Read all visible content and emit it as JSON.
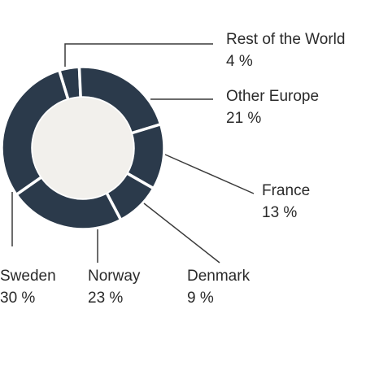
{
  "chart_data": {
    "type": "pie",
    "variant": "donut",
    "slices": [
      {
        "label": "Rest of the World",
        "value": 4,
        "value_label": "4 %"
      },
      {
        "label": "Other Europe",
        "value": 21,
        "value_label": "21 %"
      },
      {
        "label": "France",
        "value": 13,
        "value_label": "13 %"
      },
      {
        "label": "Denmark",
        "value": 9,
        "value_label": "9 %"
      },
      {
        "label": "Norway",
        "value": 23,
        "value_label": "23 %"
      },
      {
        "label": "Sweden",
        "value": 30,
        "value_label": "30 %"
      }
    ],
    "colors": {
      "slice": "#2b3a4b",
      "hole": "#f2f0ec",
      "separator": "#ffffff",
      "leader": "#3a3a3a",
      "text": "#2a2a2a"
    }
  }
}
